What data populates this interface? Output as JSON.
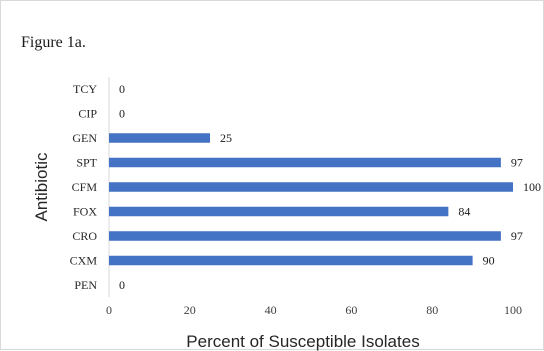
{
  "figure_label": "Figure 1a.",
  "colors": {
    "bar": "#4472c4",
    "axis": "#d9d9d9",
    "text": "#262626"
  },
  "chart_data": {
    "type": "bar",
    "orientation": "horizontal",
    "categories": [
      "PEN",
      "CXM",
      "CRO",
      "FOX",
      "CFM",
      "SPT",
      "GEN",
      "CIP",
      "TCY"
    ],
    "values": [
      0,
      90,
      97,
      84,
      100,
      97,
      25,
      0,
      0
    ],
    "data_labels": [
      "0",
      "90",
      "97",
      "84",
      "100",
      "97",
      "25",
      "0",
      "0"
    ],
    "xlabel": "Percent of Susceptible Isolates",
    "ylabel": "Antibiotic",
    "xlim": [
      0,
      100
    ],
    "x_ticks": [
      0,
      20,
      40,
      60,
      80,
      100
    ],
    "x_tick_labels": [
      "0",
      "20",
      "40",
      "60",
      "80",
      "100"
    ],
    "grid": false,
    "legend": "none"
  }
}
